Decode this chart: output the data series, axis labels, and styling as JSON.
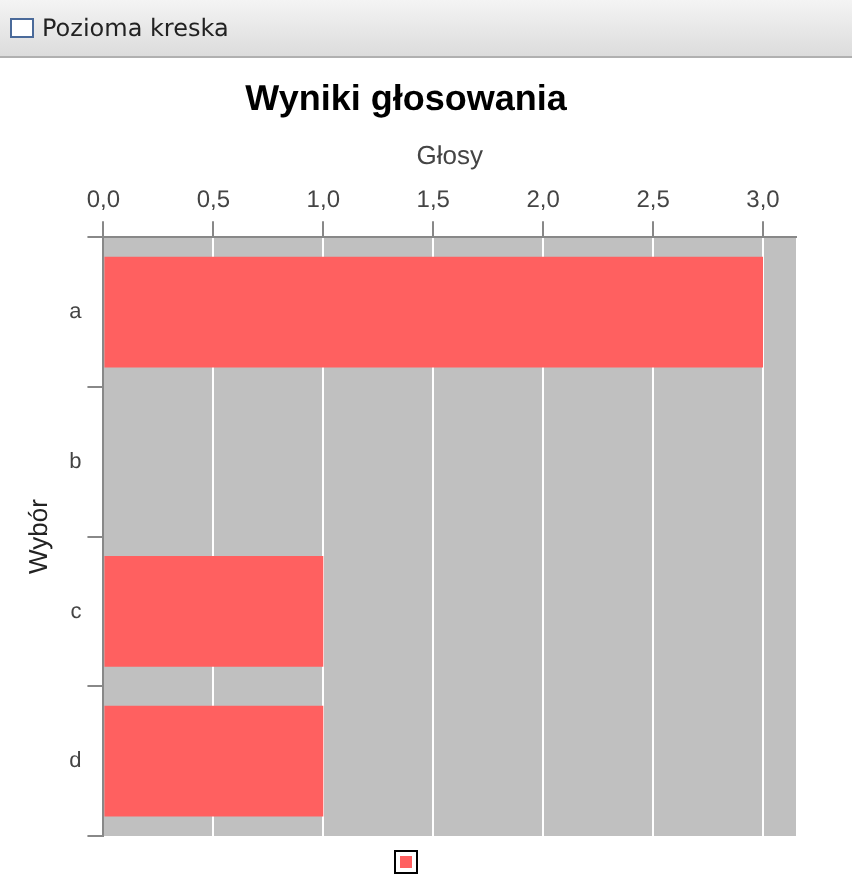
{
  "chart_data": {
    "type": "bar",
    "orientation": "horizontal",
    "title": "Wyniki głosowania",
    "xlabel": "Głosy",
    "ylabel": "Wybór",
    "annotations": [
      "Pozioma kreska"
    ],
    "categories": [
      "a",
      "b",
      "c",
      "d"
    ],
    "series": [
      {
        "color": "#ff6060",
        "values": [
          3,
          0,
          1,
          1
        ]
      }
    ],
    "xlim": [
      0,
      3.15
    ],
    "xticks": [
      {
        "value": 0,
        "label": "0,0"
      },
      {
        "value": 0.5,
        "label": "0,5"
      },
      {
        "value": 1,
        "label": "1,0"
      },
      {
        "value": 1.5,
        "label": "1,5"
      },
      {
        "value": 2,
        "label": "2,0"
      },
      {
        "value": 2.5,
        "label": "2,5"
      },
      {
        "value": 3,
        "label": "3,0"
      }
    ],
    "grid": "x"
  }
}
